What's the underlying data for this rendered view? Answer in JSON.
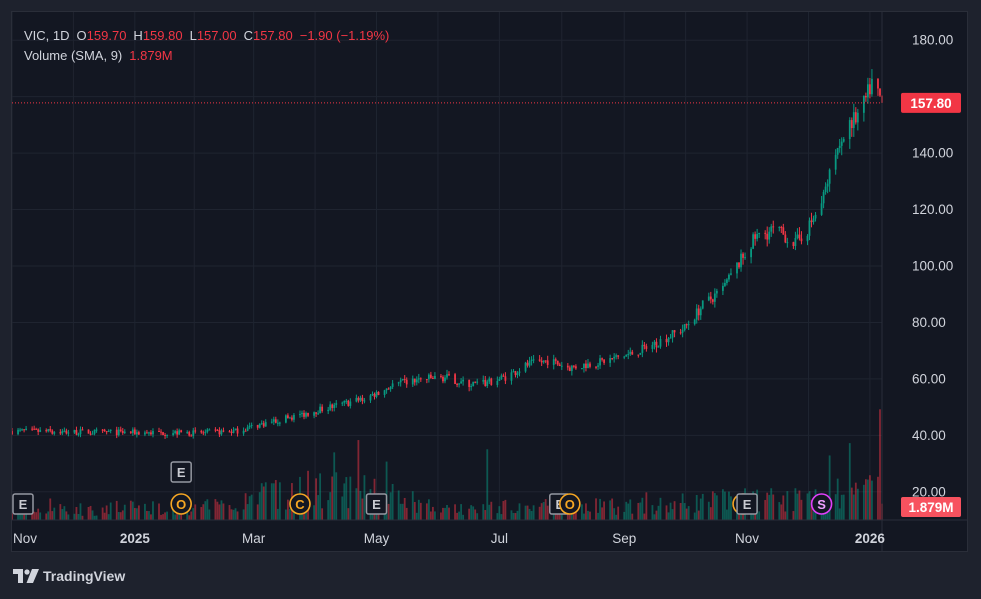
{
  "legend": {
    "symbol": "VIC",
    "interval": "1D",
    "open_label": "O",
    "open": "159.70",
    "high_label": "H",
    "high": "159.80",
    "low_label": "L",
    "low": "157.00",
    "close_label": "C",
    "close": "157.80",
    "change": "−1.90 (−1.19%)",
    "volume_label": "Volume (SMA, 9)",
    "volume_value": "1.879M"
  },
  "brand": {
    "name": "TradingView"
  },
  "colors": {
    "up": "#089981",
    "down": "#f23645",
    "text": "#d1d4dc",
    "grid": "#1f2430",
    "bg": "#131722"
  },
  "chart_data": {
    "type": "candlestick",
    "title": "VIC, 1D",
    "ylim": [
      10,
      190
    ],
    "y_ticks": [
      20,
      40,
      60,
      80,
      100,
      120,
      140,
      160,
      180
    ],
    "y_tick_labels": [
      "20.00",
      "40.00",
      "60.00",
      "80.00",
      "100.00",
      "120.00",
      "140.00",
      "",
      "180.00"
    ],
    "x_range": [
      "2024-11-01",
      "2026-01-07"
    ],
    "x_ticks": [
      {
        "label": "Nov",
        "date": "2024-11-01"
      },
      {
        "label": "2025",
        "date": "2025-01-01"
      },
      {
        "label": "Mar",
        "date": "2025-03-01"
      },
      {
        "label": "May",
        "date": "2025-05-01"
      },
      {
        "label": "Jul",
        "date": "2025-07-01"
      },
      {
        "label": "Sep",
        "date": "2025-09-01"
      },
      {
        "label": "Nov",
        "date": "2025-11-01"
      },
      {
        "label": "2026",
        "date": "2026-01-01"
      }
    ],
    "last_price": 157.8,
    "last_price_label": "157.80",
    "volume_last_label": "1.879M",
    "price_path": [
      [
        "2024-11-01",
        41.5
      ],
      [
        "2024-12-01",
        41.2
      ],
      [
        "2025-01-01",
        41.0
      ],
      [
        "2025-02-01",
        40.8
      ],
      [
        "2025-02-20",
        41.5
      ],
      [
        "2025-03-05",
        44.0
      ],
      [
        "2025-03-20",
        46.5
      ],
      [
        "2025-04-05",
        49.5
      ],
      [
        "2025-04-25",
        53.0
      ],
      [
        "2025-05-10",
        58.0
      ],
      [
        "2025-05-25",
        60.0
      ],
      [
        "2025-06-05",
        60.5
      ],
      [
        "2025-06-15",
        58.0
      ],
      [
        "2025-06-25",
        58.5
      ],
      [
        "2025-07-05",
        61.0
      ],
      [
        "2025-07-15",
        65.0
      ],
      [
        "2025-07-25",
        66.5
      ],
      [
        "2025-08-05",
        64.0
      ],
      [
        "2025-08-20",
        66.0
      ],
      [
        "2025-09-05",
        69.0
      ],
      [
        "2025-09-15",
        72.0
      ],
      [
        "2025-10-01",
        78.0
      ],
      [
        "2025-10-10",
        86.0
      ],
      [
        "2025-10-20",
        92.0
      ],
      [
        "2025-10-28",
        101.0
      ],
      [
        "2025-11-05",
        110.0
      ],
      [
        "2025-11-15",
        113.0
      ],
      [
        "2025-11-25",
        108.0
      ],
      [
        "2025-12-01",
        113.0
      ],
      [
        "2025-12-08",
        122.0
      ],
      [
        "2025-12-15",
        140.0
      ],
      [
        "2025-12-22",
        150.0
      ],
      [
        "2025-12-28",
        155.0
      ],
      [
        "2026-01-02",
        165.0
      ],
      [
        "2026-01-07",
        157.8
      ]
    ],
    "volume_ylim": [
      0,
      40
    ],
    "volume_levels": [
      [
        "2024-11-01",
        3
      ],
      [
        "2025-02-20",
        4
      ],
      [
        "2025-03-01",
        7
      ],
      [
        "2025-04-15",
        9
      ],
      [
        "2025-05-05",
        8
      ],
      [
        "2025-06-01",
        3
      ],
      [
        "2025-07-05",
        4
      ],
      [
        "2025-08-05",
        4
      ],
      [
        "2025-09-05",
        4
      ],
      [
        "2025-10-01",
        5
      ],
      [
        "2025-11-01",
        6
      ],
      [
        "2025-12-01",
        6
      ],
      [
        "2025-12-15",
        8
      ],
      [
        "2026-01-07",
        9
      ]
    ],
    "volume_spikes": [
      [
        "2024-11-20",
        7
      ],
      [
        "2025-03-12",
        13
      ],
      [
        "2025-03-28",
        16
      ],
      [
        "2025-04-10",
        22
      ],
      [
        "2025-04-22",
        26
      ],
      [
        "2025-05-06",
        19
      ],
      [
        "2025-06-25",
        23
      ],
      [
        "2025-08-10",
        11
      ],
      [
        "2025-09-12",
        9
      ],
      [
        "2025-10-20",
        10
      ],
      [
        "2025-12-12",
        21
      ],
      [
        "2025-12-22",
        25
      ],
      [
        "2026-01-06",
        36
      ]
    ],
    "event_markers": [
      {
        "date": "2024-11-01",
        "label": "E",
        "kind": "earnings"
      },
      {
        "date": "2025-01-24",
        "label": "E",
        "kind": "earnings"
      },
      {
        "date": "2025-01-24",
        "label": "O",
        "kind": "other"
      },
      {
        "date": "2025-03-24",
        "label": "C",
        "kind": "other"
      },
      {
        "date": "2025-05-01",
        "label": "E",
        "kind": "earnings"
      },
      {
        "date": "2025-07-31",
        "label": "E",
        "kind": "earnings"
      },
      {
        "date": "2025-08-05",
        "label": "O",
        "kind": "other"
      },
      {
        "date": "2025-10-30",
        "label": "",
        "kind": "other"
      },
      {
        "date": "2025-11-01",
        "label": "E",
        "kind": "earnings"
      },
      {
        "date": "2025-12-08",
        "label": "S",
        "kind": "split"
      }
    ]
  }
}
